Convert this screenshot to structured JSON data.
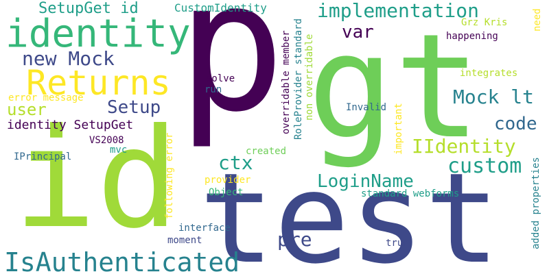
{
  "palette": {
    "dark_purple": "#440154",
    "indigo": "#3e4989",
    "blue": "#31688e",
    "teal": "#26828e",
    "sea_green": "#1f9e89",
    "green": "#35b779",
    "light_green": "#6ece58",
    "yellow_green": "#b5de2b",
    "lime": "#a0da39",
    "yellow": "#fde725"
  },
  "words": {
    "p": "p",
    "gt": "gt",
    "id": "id",
    "test": "test",
    "identity": "identity",
    "returns": "Returns",
    "setupget_id": "SetupGet id",
    "customidentity": "CustomIdentity",
    "implementation": "implementation",
    "var": "var",
    "new_mock": "new Mock",
    "mock_lt": "Mock lt",
    "setup": "Setup",
    "user": "user",
    "error_message": "error message",
    "identity_setupget": "identity SetupGet",
    "code": "code",
    "vs2008": "VS2008",
    "mvc": "mvc",
    "iprincipal": "IPrincipal",
    "iidentity": "IIdentity",
    "ctx": "ctx",
    "custom": "custom",
    "loginname": "LoginName",
    "pre": "pre",
    "isauthenticated": "IsAuthenticated",
    "solve": "solve",
    "run": "run",
    "invalid": "Invalid",
    "created": "created",
    "provider": "provider",
    "object": "Object",
    "standard_webforms": "standard webforms",
    "interface": "interface",
    "moment": "moment",
    "true": "true",
    "happening": "happening",
    "integrates": "integrates",
    "grz_kris": "Grz Kris",
    "need": "need",
    "added_properties": "added properties",
    "important": "important",
    "following_error": "following error",
    "overridable_member": "overridable member",
    "roleprovider_standard": "RoleProvider standard",
    "non_overridable": "non overridable"
  }
}
